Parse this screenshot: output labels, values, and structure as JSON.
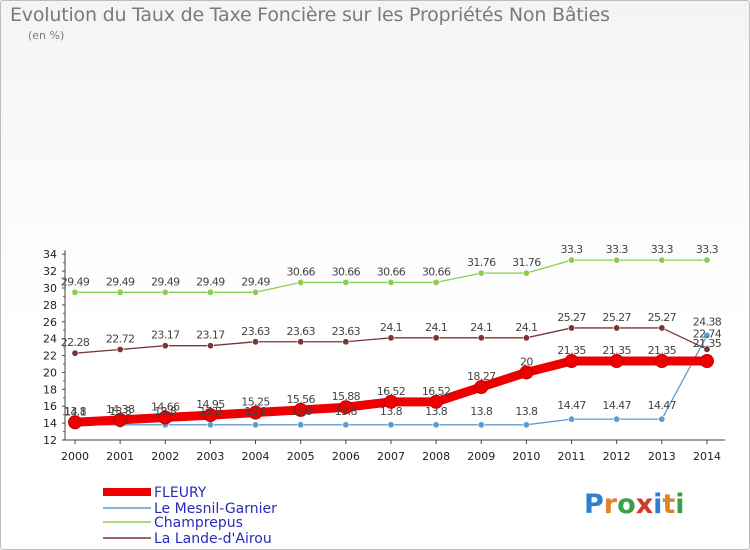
{
  "chart_data": {
    "type": "line",
    "title": "Evolution du Taux de Taxe Foncière sur les Propriétés Non Bâties",
    "ylabel": "(en %)",
    "xlabel": "",
    "x": [
      2000,
      2001,
      2002,
      2003,
      2004,
      2005,
      2006,
      2007,
      2008,
      2009,
      2010,
      2011,
      2012,
      2013,
      2014
    ],
    "ylim": [
      12,
      34
    ],
    "yticks": [
      12,
      14,
      16,
      18,
      20,
      22,
      24,
      26,
      28,
      30,
      32,
      34
    ],
    "grid": false,
    "legend_position": "bottom-left",
    "series": [
      {
        "name": "FLEURY",
        "color": "#ee0000",
        "values": [
          14.1,
          14.38,
          14.66,
          14.95,
          15.25,
          15.56,
          15.88,
          16.52,
          16.52,
          18.27,
          20,
          21.35,
          21.35,
          21.35,
          21.35
        ],
        "labels": [
          "14.1",
          "14.38",
          "14.66",
          "14.95",
          "15.25",
          "15.56",
          "15.88",
          "16.52",
          "16.52",
          "18.27",
          "20",
          "21.35",
          "21.35",
          "21.35",
          "21.35"
        ]
      },
      {
        "name": "Le Mesnil-Garnier",
        "color": "#5e9bd0",
        "values": [
          13.8,
          13.8,
          13.8,
          13.8,
          13.8,
          13.8,
          13.8,
          13.8,
          13.8,
          13.8,
          13.8,
          14.47,
          14.47,
          14.47,
          24.38
        ],
        "labels": [
          "13.8",
          "13.8",
          "13.8",
          "13.8",
          "13.8",
          "13.8",
          "13.8",
          "13.8",
          "13.8",
          "13.8",
          "13.8",
          "14.47",
          "14.47",
          "14.47",
          "24.38"
        ]
      },
      {
        "name": "Champrepus",
        "color": "#8acd50",
        "values": [
          29.49,
          29.49,
          29.49,
          29.49,
          29.49,
          30.66,
          30.66,
          30.66,
          30.66,
          31.76,
          31.76,
          33.3,
          33.3,
          33.3,
          33.3
        ],
        "labels": [
          "29.49",
          "29.49",
          "29.49",
          "29.49",
          "29.49",
          "30.66",
          "30.66",
          "30.66",
          "30.66",
          "31.76",
          "31.76",
          "33.3",
          "33.3",
          "33.3",
          "33.3"
        ]
      },
      {
        "name": "La Lande-d'Airou",
        "color": "#7a3535",
        "values": [
          22.28,
          22.72,
          23.17,
          23.17,
          23.63,
          23.63,
          23.63,
          24.1,
          24.1,
          24.1,
          24.1,
          25.27,
          25.27,
          25.27,
          22.74
        ],
        "labels": [
          "22.28",
          "22.72",
          "23.17",
          "23.17",
          "23.63",
          "23.63",
          "23.63",
          "24.1",
          "24.1",
          "24.1",
          "24.1",
          "25.27",
          "25.27",
          "25.27",
          "22.74"
        ]
      }
    ]
  },
  "logo": {
    "letters": [
      "P",
      "r",
      "o",
      "x",
      "i",
      "t",
      "i"
    ],
    "colors": [
      "#2e7fd0",
      "#e0822a",
      "#3aa14a",
      "#d03a2a",
      "#2e7fd0",
      "#e0822a",
      "#3aa14a"
    ]
  }
}
